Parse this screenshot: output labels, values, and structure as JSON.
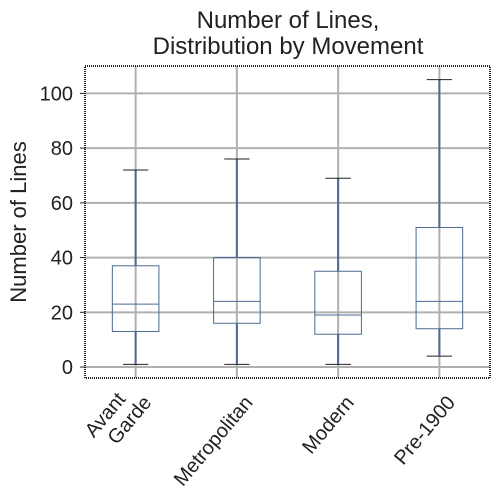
{
  "chart_data": {
    "type": "boxplot",
    "title_lines": [
      "Number of Lines,",
      "Distribution by Movement"
    ],
    "xlabel": "",
    "ylabel": "Number of Lines",
    "ylim": [
      -4,
      110
    ],
    "yticks": [
      0,
      20,
      40,
      60,
      80,
      100
    ],
    "grid": true,
    "categories": [
      {
        "lines": [
          "Avant",
          "Garde"
        ]
      },
      {
        "lines": [
          "Metropolitan"
        ]
      },
      {
        "lines": [
          "Modern"
        ]
      },
      {
        "lines": [
          "Pre-1900"
        ]
      }
    ],
    "boxes": [
      {
        "min": 1,
        "q1": 13,
        "median": 23,
        "q3": 37,
        "max": 72
      },
      {
        "min": 1,
        "q1": 16,
        "median": 24,
        "q3": 40,
        "max": 76
      },
      {
        "min": 1,
        "q1": 12,
        "median": 19,
        "q3": 35,
        "max": 69
      },
      {
        "min": 4,
        "q1": 14,
        "median": 24,
        "q3": 51,
        "max": 105
      }
    ],
    "colors": {
      "box": "#4c6a92",
      "whisker": "#4c6a92",
      "cap": "#222222",
      "grid": "#b0b0b0",
      "frame": "#222222"
    }
  }
}
